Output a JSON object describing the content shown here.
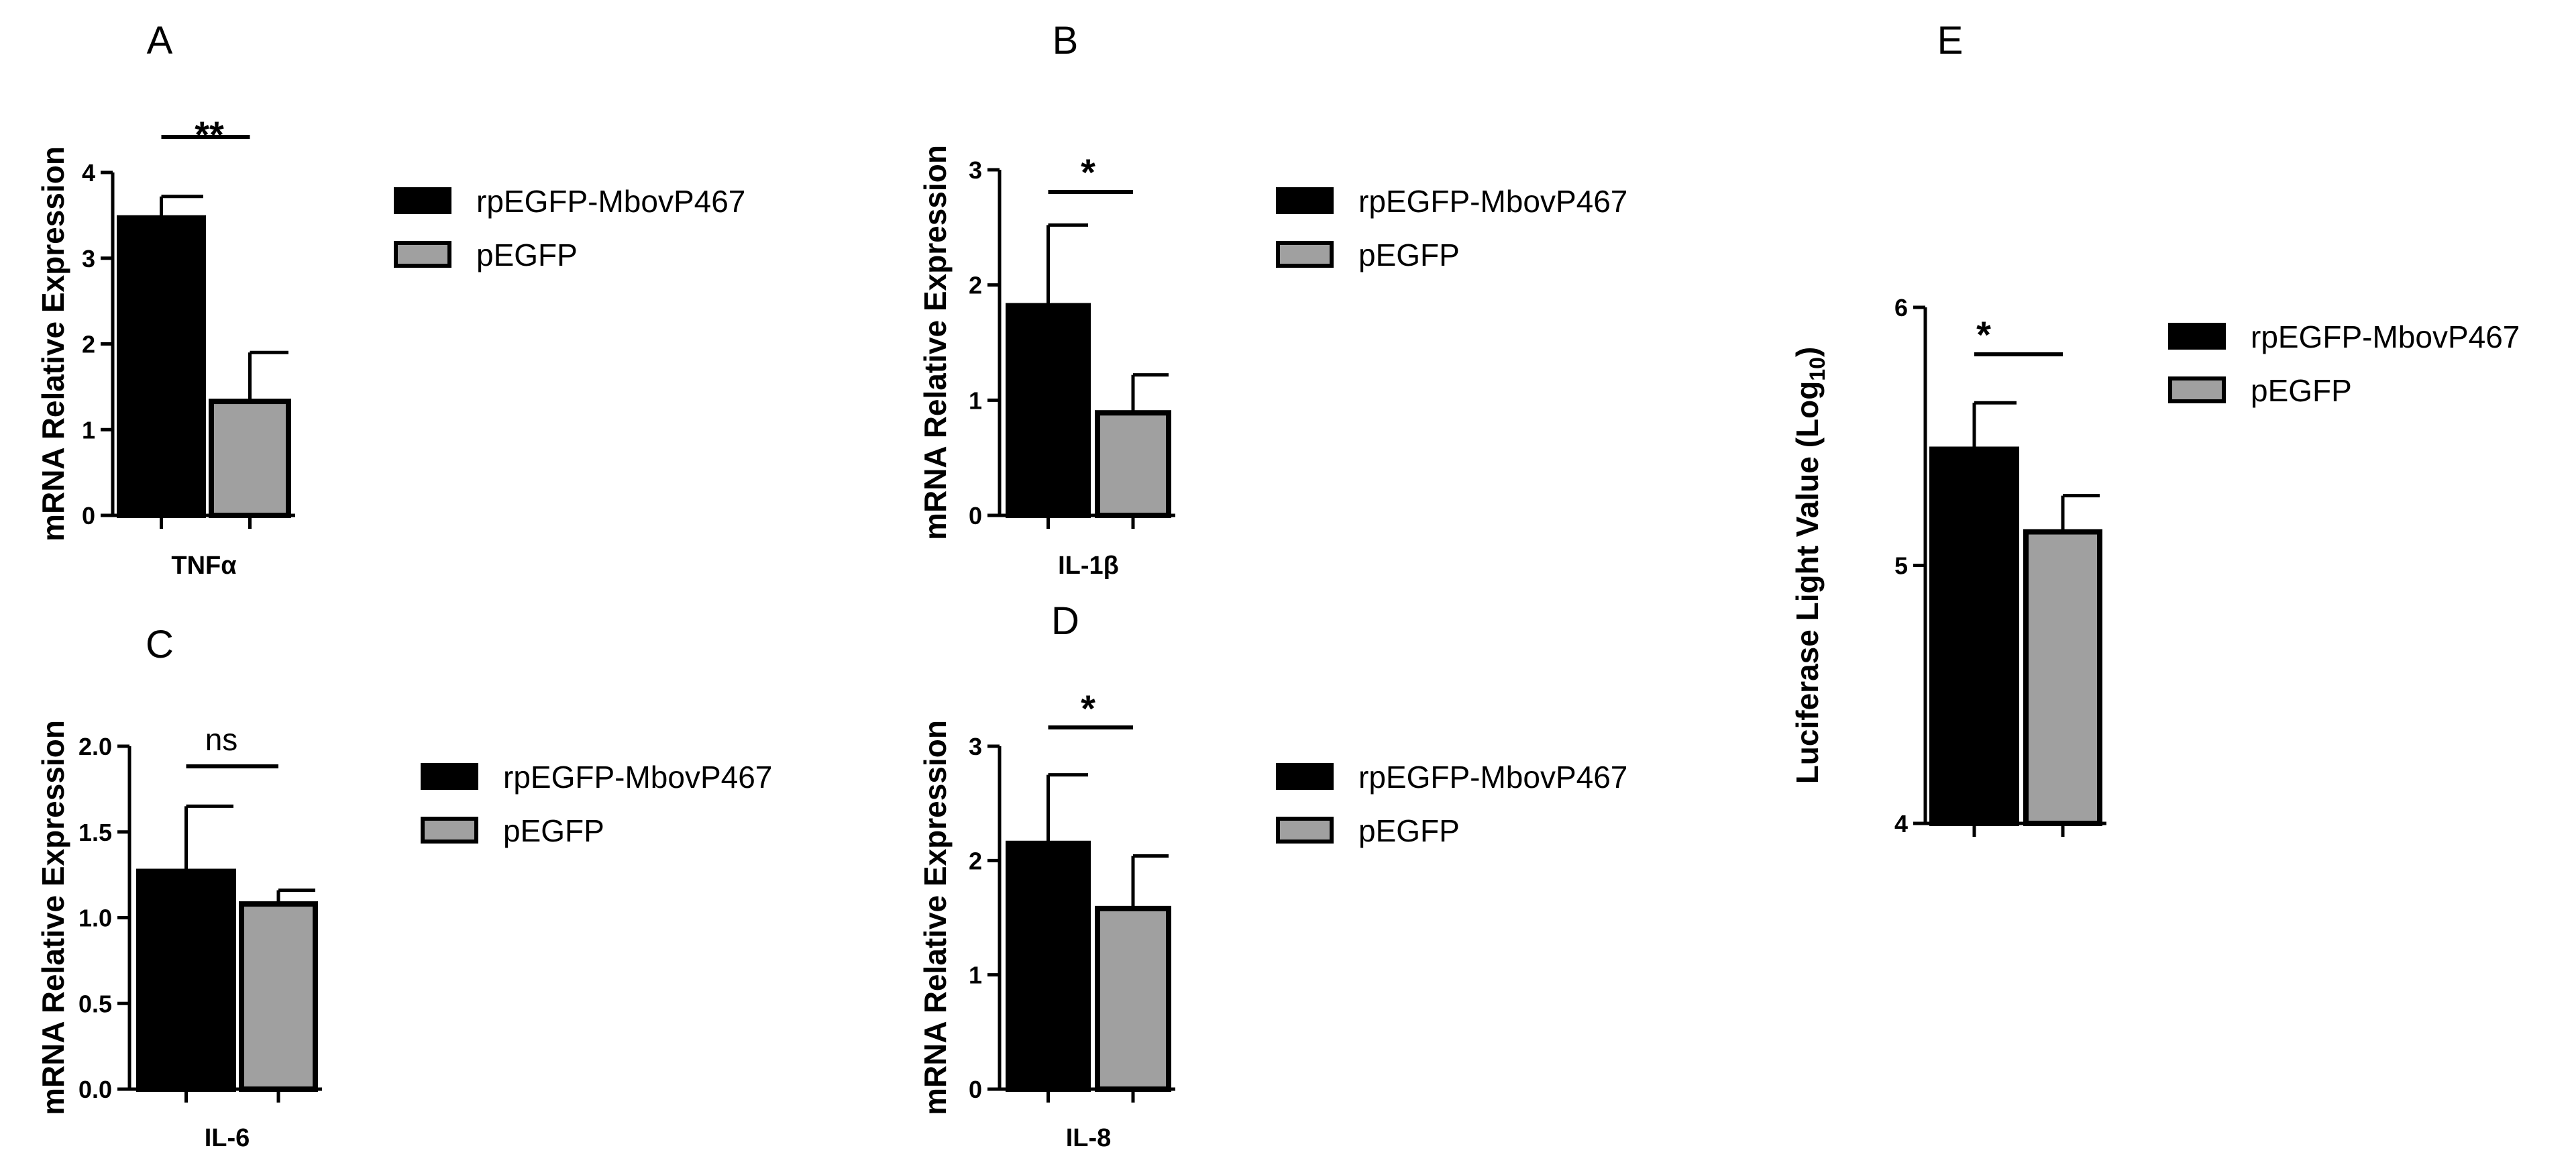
{
  "figure": {
    "legend_labels": [
      "rpEGFP-MbovP467",
      "pEGFP"
    ],
    "colors": {
      "rpEGFP-MbovP467": "#000000",
      "pEGFP": "#a0a0a0",
      "axis": "#000000"
    }
  },
  "chart_data": [
    {
      "panel": "A",
      "type": "bar",
      "categories": [
        "TNFα"
      ],
      "series": [
        {
          "name": "rpEGFP-MbovP467",
          "values": [
            3.47
          ],
          "error": [
            0.25
          ]
        },
        {
          "name": "pEGFP",
          "values": [
            1.33
          ],
          "error": [
            0.57
          ]
        }
      ],
      "ylabel": "mRNA Relative Expression",
      "ylim": [
        0,
        4
      ],
      "yticks": [
        "0",
        "1",
        "2",
        "3",
        "4"
      ],
      "significance": "**",
      "legend": "right",
      "grid": false
    },
    {
      "panel": "B",
      "type": "bar",
      "categories": [
        "IL-1β"
      ],
      "series": [
        {
          "name": "rpEGFP-MbovP467",
          "values": [
            1.82
          ],
          "error": [
            0.7
          ]
        },
        {
          "name": "pEGFP",
          "values": [
            0.89
          ],
          "error": [
            0.33
          ]
        }
      ],
      "ylabel": "mRNA Relative Expression",
      "ylim": [
        0,
        3
      ],
      "yticks": [
        "0",
        "1",
        "2",
        "3"
      ],
      "significance": "*",
      "legend": "right",
      "grid": false
    },
    {
      "panel": "C",
      "type": "bar",
      "categories": [
        "IL-6"
      ],
      "series": [
        {
          "name": "rpEGFP-MbovP467",
          "values": [
            1.27
          ],
          "error": [
            0.38
          ]
        },
        {
          "name": "pEGFP",
          "values": [
            1.08
          ],
          "error": [
            0.08
          ]
        }
      ],
      "ylabel": "mRNA Relative Expression",
      "ylim": [
        0,
        2
      ],
      "yticks": [
        "0.0",
        "0.5",
        "1.0",
        "1.5",
        "2.0"
      ],
      "significance": "ns",
      "legend": "right",
      "grid": false
    },
    {
      "panel": "D",
      "type": "bar",
      "categories": [
        "IL-8"
      ],
      "series": [
        {
          "name": "rpEGFP-MbovP467",
          "values": [
            2.15
          ],
          "error": [
            0.6
          ]
        },
        {
          "name": "pEGFP",
          "values": [
            1.58
          ],
          "error": [
            0.46
          ]
        }
      ],
      "ylabel": "mRNA Relative Expression",
      "ylim": [
        0,
        3
      ],
      "yticks": [
        "0",
        "1",
        "2",
        "3"
      ],
      "significance": "*",
      "legend": "right",
      "grid": false
    },
    {
      "panel": "E",
      "type": "bar",
      "categories": [
        ""
      ],
      "series": [
        {
          "name": "rpEGFP-MbovP467",
          "values": [
            5.45
          ],
          "error": [
            0.18
          ]
        },
        {
          "name": "pEGFP",
          "values": [
            5.13
          ],
          "error": [
            0.14
          ]
        }
      ],
      "ylabel": "Luciferase Light Value (Log",
      "ylabel_sub": "10",
      "ylabel_end": ")",
      "ylim": [
        4,
        6
      ],
      "yticks": [
        "4",
        "5",
        "6"
      ],
      "significance": "*",
      "legend": "right",
      "grid": false
    }
  ]
}
